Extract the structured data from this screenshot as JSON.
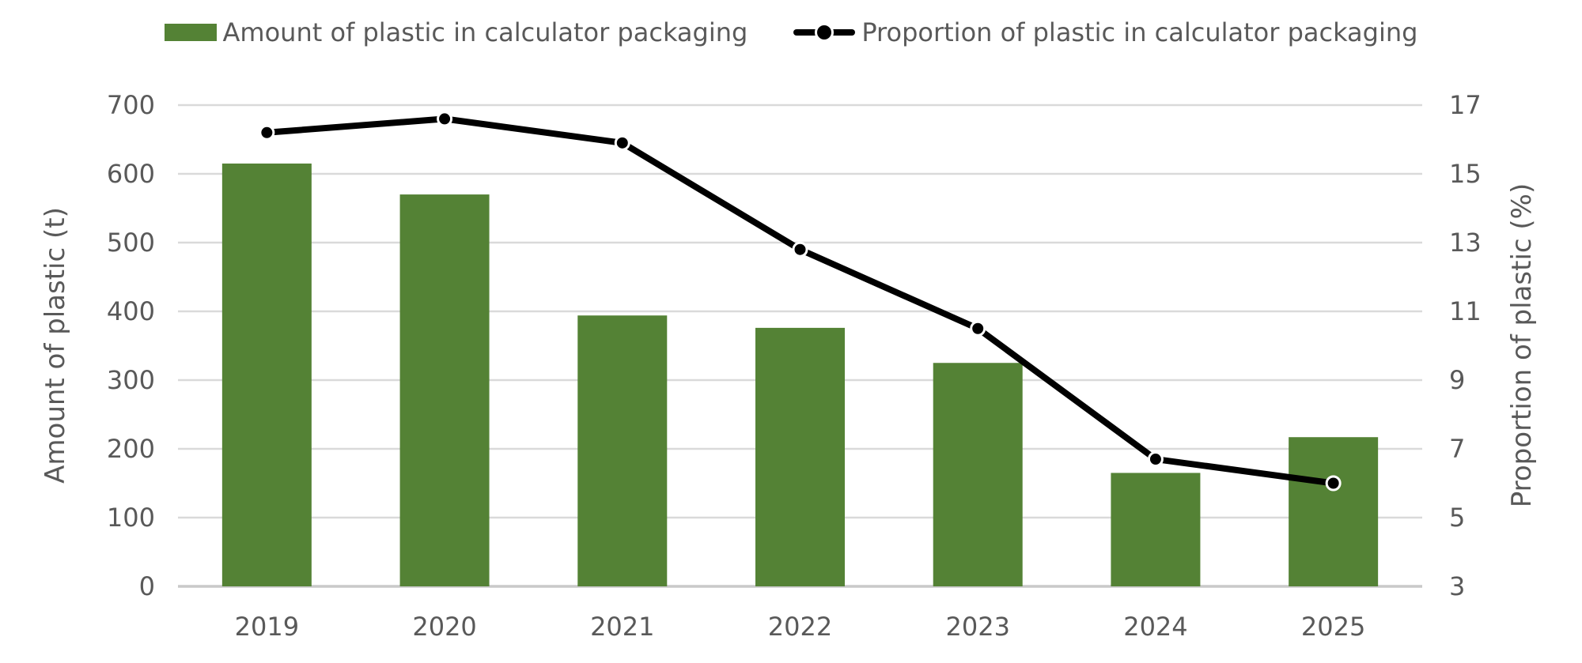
{
  "chart_data": {
    "type": "combo",
    "title": "",
    "categories": [
      "2019",
      "2020",
      "2021",
      "2022",
      "2023",
      "2024",
      "2025"
    ],
    "series": [
      {
        "name": "Amount of plastic in calculator packaging",
        "type": "bar",
        "axis": "left",
        "color": "#548235",
        "values": [
          615,
          570,
          394,
          376,
          325,
          165,
          217
        ]
      },
      {
        "name": "Proportion of plastic in calculator packaging",
        "type": "line",
        "axis": "right",
        "color": "#000000",
        "marker": "circle",
        "values": [
          16.2,
          16.6,
          15.9,
          12.8,
          10.5,
          6.7,
          6.0
        ]
      }
    ],
    "left_axis": {
      "label": "Amount of plastic (t)",
      "min": 0,
      "max": 700,
      "ticks": [
        0,
        100,
        200,
        300,
        400,
        500,
        600,
        700
      ]
    },
    "right_axis": {
      "label": "Proportion of plastic (%)",
      "min": 3,
      "max": 17,
      "ticks": [
        3,
        5,
        7,
        9,
        11,
        13,
        15,
        17
      ]
    },
    "legend_position": "top",
    "grid": true,
    "colors": {
      "grid": "#dadada",
      "baseline": "#c9c9c9",
      "text": "#595959",
      "background": "#ffffff"
    }
  }
}
